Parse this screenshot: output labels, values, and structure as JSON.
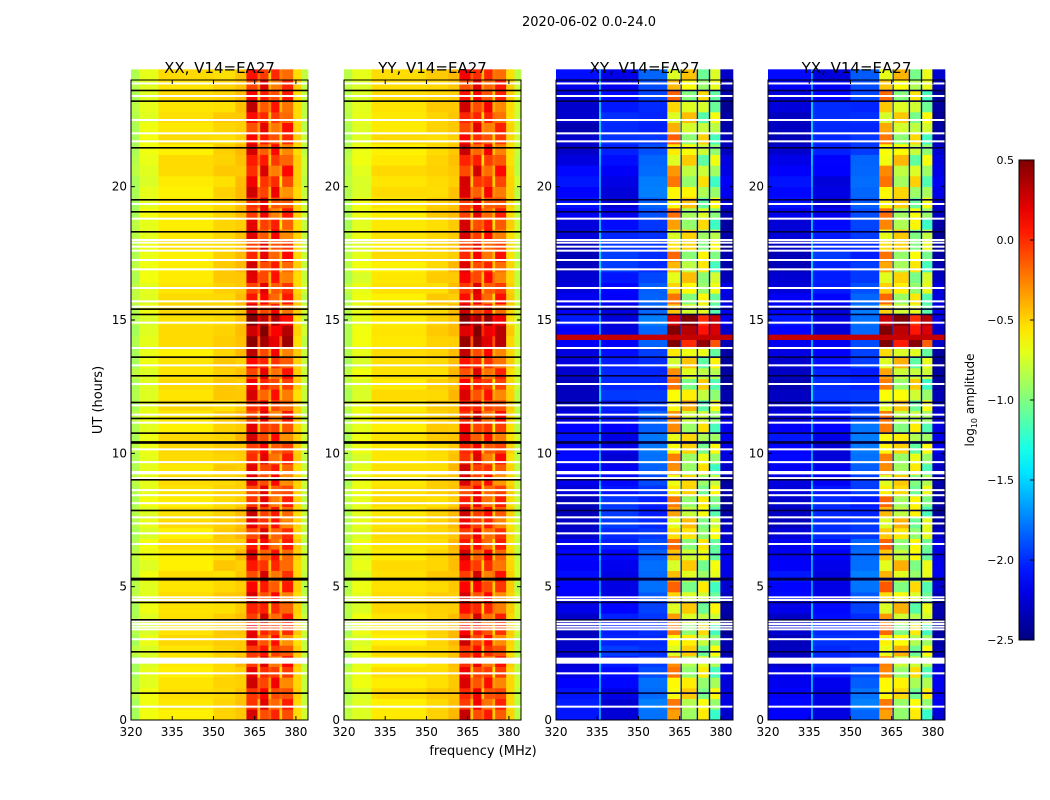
{
  "chart_data": {
    "type": "heatmap",
    "title": "2020-06-02 0.0-24.0",
    "xlabel": "frequency (MHz)",
    "ylabel": "UT (hours)",
    "xlim": [
      320,
      384.4
    ],
    "ylim": [
      0,
      24
    ],
    "xticks": [
      320,
      335,
      350,
      365,
      380
    ],
    "yticks": [
      0,
      5,
      10,
      15,
      20
    ],
    "panels": [
      {
        "title": "XX, V14=EA27",
        "kind": "parallel"
      },
      {
        "title": "YY, V14=EA27",
        "kind": "parallel"
      },
      {
        "title": "XY, V14=EA27",
        "kind": "cross"
      },
      {
        "title": "YX, V14=EA27",
        "kind": "cross"
      }
    ],
    "column_profiles": {
      "parallel": [
        [
          320,
          323,
          -0.85
        ],
        [
          323,
          330,
          -0.7
        ],
        [
          330,
          350,
          -0.55
        ],
        [
          350,
          358,
          -0.5
        ],
        [
          358,
          362,
          -0.45
        ],
        [
          362,
          366,
          0.1
        ],
        [
          366,
          367,
          -0.3
        ],
        [
          367,
          370,
          0.05
        ],
        [
          370,
          371,
          -0.3
        ],
        [
          371,
          374,
          -0.05
        ],
        [
          374,
          375,
          -0.35
        ],
        [
          375,
          379,
          -0.1
        ],
        [
          379,
          382,
          -0.5
        ],
        [
          382,
          384.4,
          -0.8
        ]
      ],
      "cross": [
        [
          320,
          335.7,
          -2.2
        ],
        [
          335.7,
          336.3,
          -1.5
        ],
        [
          336.3,
          350,
          -2.1
        ],
        [
          350,
          360.5,
          -1.9
        ],
        [
          360.5,
          365.3,
          -0.45
        ],
        [
          365.3,
          365.8,
          -1.9
        ],
        [
          365.8,
          371.2,
          -0.7
        ],
        [
          371.2,
          371.7,
          -2.1
        ],
        [
          371.7,
          375.6,
          -0.8
        ],
        [
          375.6,
          376.1,
          -2.2
        ],
        [
          376.1,
          379.8,
          -0.9
        ],
        [
          379.8,
          384.4,
          -2.3
        ]
      ]
    },
    "band_range_mhz": [
      360.5,
      380
    ],
    "hot_rows_hours": [
      14.2,
      15.2
    ],
    "flagged_rows_hours": [
      0.5,
      1.75,
      2.15,
      2.2,
      2.25,
      2.3,
      3.03,
      3.4,
      3.5,
      3.6,
      3.7,
      4.5,
      4.6,
      6.6,
      7.0,
      7.37,
      7.6,
      8.13,
      8.43,
      8.62,
      9.07,
      9.25,
      9.3,
      9.67,
      10.15,
      11.15,
      11.45,
      11.8,
      12.6,
      13.3,
      13.95,
      14.9,
      15.5,
      15.7,
      16.2,
      16.9,
      17.25,
      17.6,
      17.75,
      17.9,
      18.0,
      18.8,
      19.35,
      21.7,
      22.0,
      22.5,
      23.4,
      23.87
    ],
    "dark_rows_hours": [
      1.0,
      2.55,
      3.75,
      4.4,
      5.25,
      5.3,
      6.2,
      7.85,
      9.0,
      10.38,
      10.42,
      10.75,
      11.3,
      11.9,
      12.9,
      13.6,
      15.2,
      15.4,
      18.3,
      19.05,
      19.5,
      21.45,
      23.2,
      23.6
    ],
    "colorbar": {
      "label_prefix": "log",
      "label_sub": "10",
      "label_suffix": " amplitude",
      "range": [
        -2.5,
        0.5
      ],
      "ticks": [
        "−2.5",
        "−2.0",
        "−1.5",
        "−1.0",
        "−0.5",
        "0.0",
        "0.5"
      ],
      "tick_values": [
        -2.5,
        -2.0,
        -1.5,
        -1.0,
        -0.5,
        0.0,
        0.5
      ]
    }
  }
}
